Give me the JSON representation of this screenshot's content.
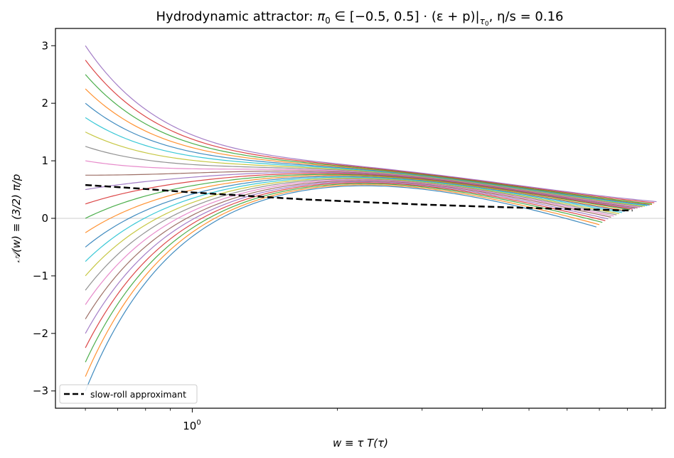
{
  "chart_data": {
    "type": "line",
    "title": {
      "text": "Hydrodynamic attractor: ",
      "pi": "π",
      "pi_sub": "0",
      "interval": " ∈ [−0.5, 0.5] · (ε + p)|",
      "tau": "τ",
      "tau_sub": "0",
      "eta_s": ",  η/s = 0.16"
    },
    "xlabel": "w ≡ τ T(τ)",
    "ylabel": "𝒜(w) ≡ (3/2) π/p",
    "xscale": "log",
    "xlim": [
      0.52,
      9.6
    ],
    "ylim": [
      -3.3,
      3.3
    ],
    "x_tick_label": {
      "base": "10",
      "exp": "0",
      "value": 1.0
    },
    "x_minor_ticks": [
      0.6,
      0.7,
      0.8,
      0.9,
      2,
      3,
      4,
      5,
      6,
      7,
      8,
      9
    ],
    "y_ticks": [
      -3,
      -2,
      -1,
      0,
      1,
      2,
      3
    ],
    "y_tick_labels": [
      "−3",
      "−2",
      "−1",
      "0",
      "1",
      "2",
      "3"
    ],
    "zero_line": true,
    "legend": {
      "entries": [
        "slow-roll approximant"
      ],
      "position": "lower left"
    },
    "slow_roll": {
      "name": "slow-roll approximant",
      "color": "#000000",
      "dash": "dashed",
      "points": [
        [
          0.6,
          0.58
        ],
        [
          0.8,
          0.51
        ],
        [
          1.0,
          0.45
        ],
        [
          1.3,
          0.39
        ],
        [
          1.7,
          0.33
        ],
        [
          2.3,
          0.28
        ],
        [
          3.0,
          0.24
        ],
        [
          4.0,
          0.205
        ],
        [
          5.5,
          0.17
        ],
        [
          7.0,
          0.15
        ],
        [
          8.2,
          0.135
        ]
      ]
    },
    "series": [
      {
        "color": "#1f77b4",
        "start": -3.0,
        "x_end": 6.9,
        "y_end": -0.15
      },
      {
        "color": "#ff7f0e",
        "start": -2.75,
        "x_end": 7.0,
        "y_end": -0.11
      },
      {
        "color": "#2ca02c",
        "start": -2.5,
        "x_end": 7.1,
        "y_end": -0.07
      },
      {
        "color": "#d62728",
        "start": -2.25,
        "x_end": 7.2,
        "y_end": -0.04
      },
      {
        "color": "#9467bd",
        "start": -2.0,
        "x_end": 7.3,
        "y_end": -0.01
      },
      {
        "color": "#8c564b",
        "start": -1.75,
        "x_end": 7.4,
        "y_end": 0.02
      },
      {
        "color": "#e377c2",
        "start": -1.5,
        "x_end": 7.5,
        "y_end": 0.04
      },
      {
        "color": "#7f7f7f",
        "start": -1.25,
        "x_end": 7.6,
        "y_end": 0.06
      },
      {
        "color": "#bcbd22",
        "start": -1.0,
        "x_end": 7.7,
        "y_end": 0.08
      },
      {
        "color": "#17becf",
        "start": -0.75,
        "x_end": 7.8,
        "y_end": 0.1
      },
      {
        "color": "#1f77b4",
        "start": -0.5,
        "x_end": 7.9,
        "y_end": 0.12
      },
      {
        "color": "#ff7f0e",
        "start": -0.25,
        "x_end": 8.0,
        "y_end": 0.13
      },
      {
        "color": "#2ca02c",
        "start": 0.0,
        "x_end": 8.1,
        "y_end": 0.15
      },
      {
        "color": "#d62728",
        "start": 0.25,
        "x_end": 8.2,
        "y_end": 0.16
      },
      {
        "color": "#9467bd",
        "start": 0.5,
        "x_end": 8.3,
        "y_end": 0.17
      },
      {
        "color": "#8c564b",
        "start": 0.75,
        "x_end": 8.4,
        "y_end": 0.18
      },
      {
        "color": "#e377c2",
        "start": 1.0,
        "x_end": 8.5,
        "y_end": 0.19
      },
      {
        "color": "#7f7f7f",
        "start": 1.25,
        "x_end": 8.6,
        "y_end": 0.2
      },
      {
        "color": "#bcbd22",
        "start": 1.5,
        "x_end": 8.7,
        "y_end": 0.21
      },
      {
        "color": "#17becf",
        "start": 1.75,
        "x_end": 8.8,
        "y_end": 0.22
      },
      {
        "color": "#1f77b4",
        "start": 2.0,
        "x_end": 8.9,
        "y_end": 0.23
      },
      {
        "color": "#ff7f0e",
        "start": 2.25,
        "x_end": 9.0,
        "y_end": 0.24
      },
      {
        "color": "#2ca02c",
        "start": 2.5,
        "x_end": 9.0,
        "y_end": 0.25
      },
      {
        "color": "#d62728",
        "start": 2.75,
        "x_end": 9.1,
        "y_end": 0.27
      },
      {
        "color": "#9467bd",
        "start": 3.0,
        "x_end": 9.2,
        "y_end": 0.29
      }
    ],
    "series_x_start": 0.6
  }
}
